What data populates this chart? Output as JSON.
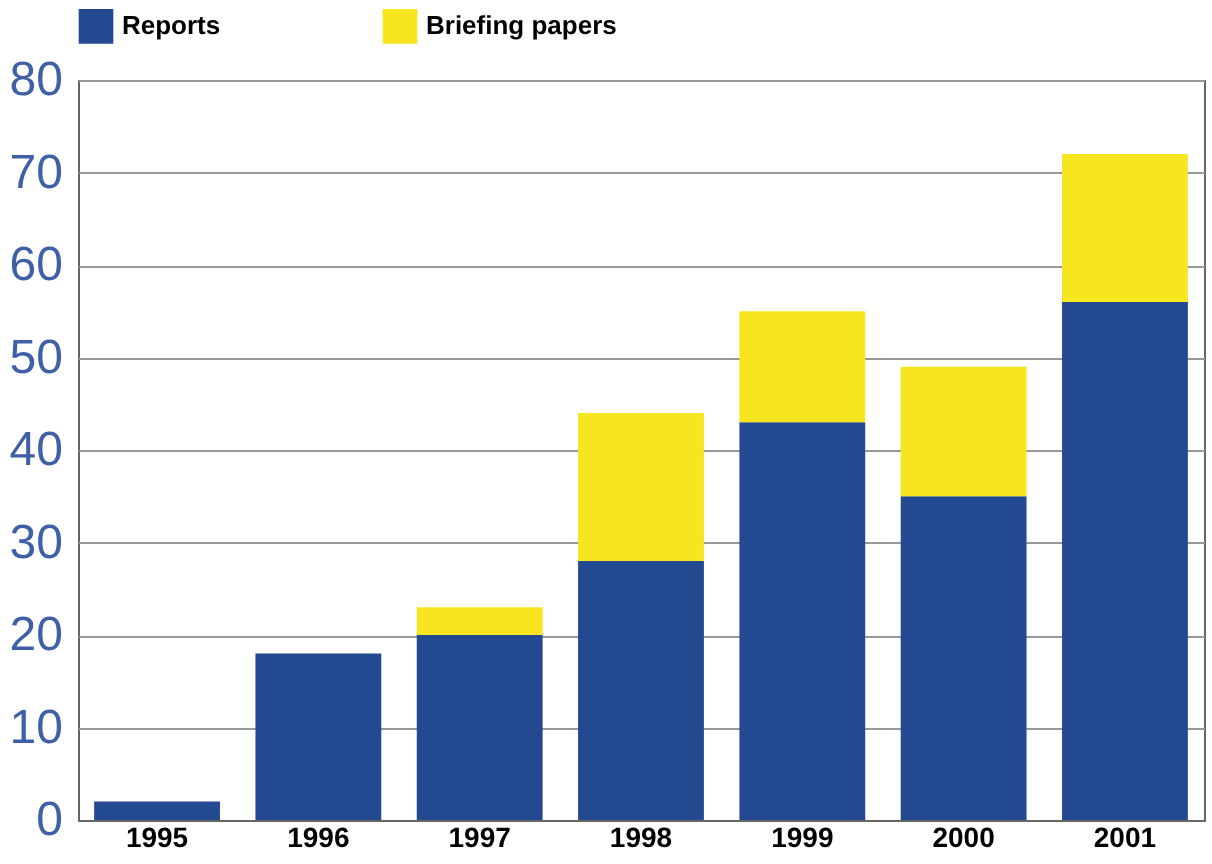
{
  "chart_data": {
    "type": "bar",
    "stacked": true,
    "categories": [
      "1995",
      "1996",
      "1997",
      "1998",
      "1999",
      "2000",
      "2001"
    ],
    "series": [
      {
        "name": "Reports",
        "color": "#234a91",
        "values": [
          2,
          18,
          20,
          28,
          43,
          35,
          56
        ]
      },
      {
        "name": "Briefing papers",
        "color": "#f7e51f",
        "values": [
          0,
          0,
          3,
          16,
          12,
          14,
          16
        ]
      }
    ],
    "ylim": [
      0,
      80
    ],
    "yticks": [
      0,
      10,
      20,
      30,
      40,
      50,
      60,
      70,
      80
    ],
    "grid": "y",
    "legend": "top left"
  }
}
